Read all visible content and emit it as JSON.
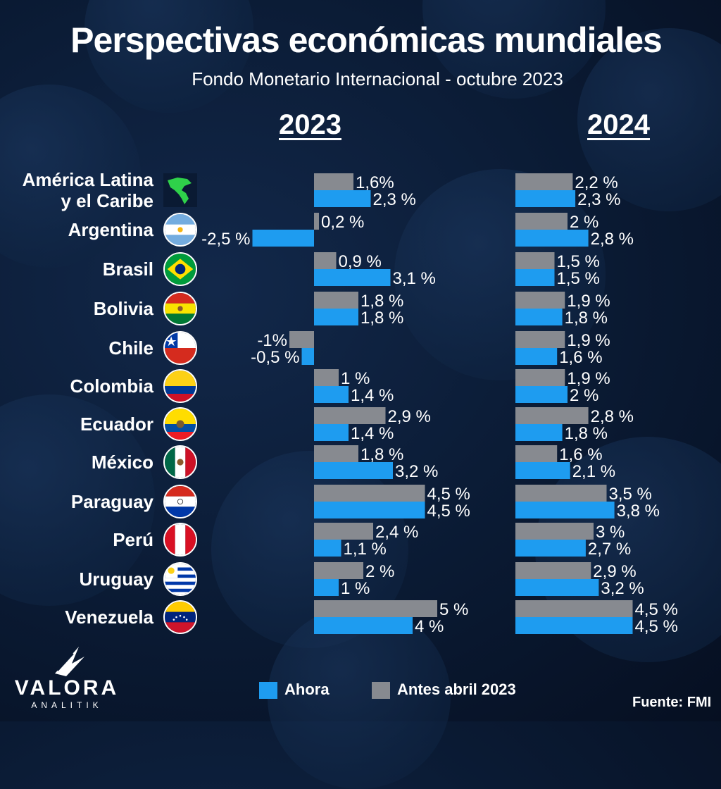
{
  "title": "Perspectivas económicas mundiales",
  "subtitle": "Fondo Monetario Internacional - octubre 2023",
  "source": "Fuente: FMI",
  "logo": {
    "word": "VALORA",
    "sub": "ANALITIK",
    "icon": "valora-logo-icon"
  },
  "colors": {
    "ahora": "#1e9cf0",
    "antes": "#878a90",
    "background": "#0a1a33"
  },
  "legend": [
    {
      "label": "Ahora",
      "color": "#1e9cf0"
    },
    {
      "label": "Antes abril 2023",
      "color": "#878a90"
    }
  ],
  "chart_data": {
    "type": "bar",
    "orientation": "horizontal",
    "panels": [
      "2023",
      "2024"
    ],
    "series_names": [
      "Antes abril 2023",
      "Ahora"
    ],
    "legend_position": "bottom",
    "grid": false,
    "countries": [
      {
        "name": [
          "América Latina",
          "y el Caribe"
        ],
        "flag": "latin-america-map-icon",
        "y2023": {
          "antes": {
            "v": 1.6,
            "label": "1,6%"
          },
          "ahora": {
            "v": 2.3,
            "label": "2,3 %"
          }
        },
        "y2024": {
          "antes": {
            "v": 2.2,
            "label": "2,2 %"
          },
          "ahora": {
            "v": 2.3,
            "label": "2,3 %"
          }
        }
      },
      {
        "name": [
          "Argentina"
        ],
        "flag": "argentina-flag-icon",
        "y2023": {
          "antes": {
            "v": 0.2,
            "label": "0,2 %"
          },
          "ahora": {
            "v": -2.5,
            "label": "-2,5 %"
          }
        },
        "y2024": {
          "antes": {
            "v": 2.0,
            "label": "2 %"
          },
          "ahora": {
            "v": 2.8,
            "label": "2,8 %"
          }
        }
      },
      {
        "name": [
          "Brasil"
        ],
        "flag": "brazil-flag-icon",
        "y2023": {
          "antes": {
            "v": 0.9,
            "label": "0,9 %"
          },
          "ahora": {
            "v": 3.1,
            "label": "3,1 %"
          }
        },
        "y2024": {
          "antes": {
            "v": 1.5,
            "label": "1,5 %"
          },
          "ahora": {
            "v": 1.5,
            "label": "1,5 %"
          }
        }
      },
      {
        "name": [
          "Bolivia"
        ],
        "flag": "bolivia-flag-icon",
        "y2023": {
          "antes": {
            "v": 1.8,
            "label": "1,8 %"
          },
          "ahora": {
            "v": 1.8,
            "label": "1,8 %"
          }
        },
        "y2024": {
          "antes": {
            "v": 1.9,
            "label": "1,9 %"
          },
          "ahora": {
            "v": 1.8,
            "label": "1,8 %"
          }
        }
      },
      {
        "name": [
          "Chile"
        ],
        "flag": "chile-flag-icon",
        "y2023": {
          "antes": {
            "v": -1.0,
            "label": "-1%"
          },
          "ahora": {
            "v": -0.5,
            "label": "-0,5 %"
          }
        },
        "y2024": {
          "antes": {
            "v": 1.9,
            "label": "1,9 %"
          },
          "ahora": {
            "v": 1.6,
            "label": "1,6 %"
          }
        }
      },
      {
        "name": [
          "Colombia"
        ],
        "flag": "colombia-flag-icon",
        "y2023": {
          "antes": {
            "v": 1.0,
            "label": "1 %"
          },
          "ahora": {
            "v": 1.4,
            "label": "1,4 %"
          }
        },
        "y2024": {
          "antes": {
            "v": 1.9,
            "label": "1,9 %"
          },
          "ahora": {
            "v": 2.0,
            "label": "2 %"
          }
        }
      },
      {
        "name": [
          "Ecuador"
        ],
        "flag": "ecuador-flag-icon",
        "y2023": {
          "antes": {
            "v": 2.9,
            "label": "2,9 %"
          },
          "ahora": {
            "v": 1.4,
            "label": "1,4 %"
          }
        },
        "y2024": {
          "antes": {
            "v": 2.8,
            "label": "2,8 %"
          },
          "ahora": {
            "v": 1.8,
            "label": "1,8 %"
          }
        }
      },
      {
        "name": [
          "México"
        ],
        "flag": "mexico-flag-icon",
        "y2023": {
          "antes": {
            "v": 1.8,
            "label": "1,8 %"
          },
          "ahora": {
            "v": 3.2,
            "label": "3,2 %"
          }
        },
        "y2024": {
          "antes": {
            "v": 1.6,
            "label": "1,6 %"
          },
          "ahora": {
            "v": 2.1,
            "label": "2,1 %"
          }
        }
      },
      {
        "name": [
          "Paraguay"
        ],
        "flag": "paraguay-flag-icon",
        "y2023": {
          "antes": {
            "v": 4.5,
            "label": "4,5 %"
          },
          "ahora": {
            "v": 4.5,
            "label": "4,5 %"
          }
        },
        "y2024": {
          "antes": {
            "v": 3.5,
            "label": "3,5 %"
          },
          "ahora": {
            "v": 3.8,
            "label": "3,8 %"
          }
        }
      },
      {
        "name": [
          "Perú"
        ],
        "flag": "peru-flag-icon",
        "y2023": {
          "antes": {
            "v": 2.4,
            "label": "2,4 %"
          },
          "ahora": {
            "v": 1.1,
            "label": "1,1 %"
          }
        },
        "y2024": {
          "antes": {
            "v": 3.0,
            "label": "3 %"
          },
          "ahora": {
            "v": 2.7,
            "label": "2,7 %"
          }
        }
      },
      {
        "name": [
          "Uruguay"
        ],
        "flag": "uruguay-flag-icon",
        "y2023": {
          "antes": {
            "v": 2.0,
            "label": "2 %"
          },
          "ahora": {
            "v": 1.0,
            "label": "1 %"
          }
        },
        "y2024": {
          "antes": {
            "v": 2.9,
            "label": "2,9 %"
          },
          "ahora": {
            "v": 3.2,
            "label": "3,2 %"
          }
        }
      },
      {
        "name": [
          "Venezuela"
        ],
        "flag": "venezuela-flag-icon",
        "y2023": {
          "antes": {
            "v": 5.0,
            "label": "5 %"
          },
          "ahora": {
            "v": 4.0,
            "label": "4 %"
          }
        },
        "y2024": {
          "antes": {
            "v": 4.5,
            "label": "4,5 %"
          },
          "ahora": {
            "v": 4.5,
            "label": "4,5 %"
          }
        }
      }
    ]
  }
}
